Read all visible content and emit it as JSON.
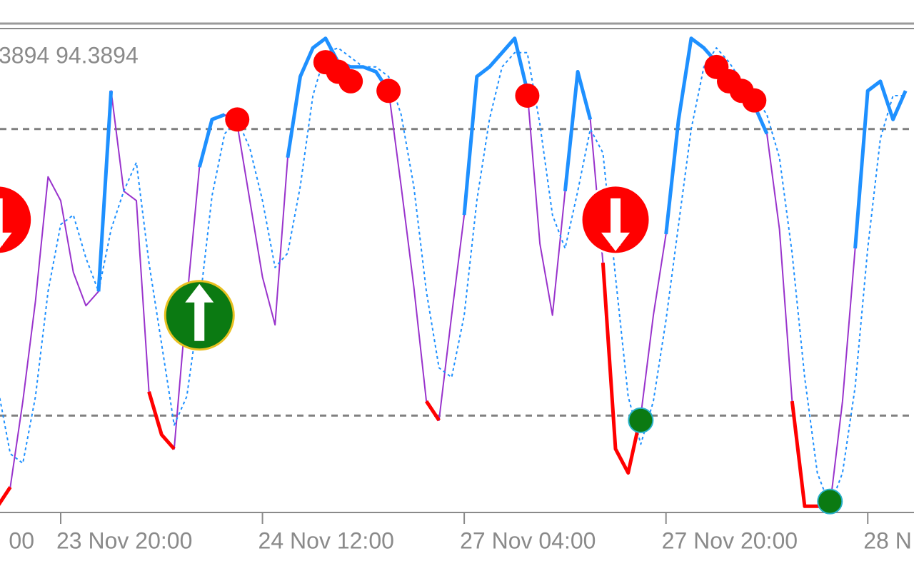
{
  "chart_data": {
    "type": "line",
    "header": "3894 94.3894",
    "left_label": "00",
    "categories": [
      null,
      null,
      null,
      null,
      null,
      "23 Nov 20:00",
      null,
      null,
      null,
      null,
      null,
      null,
      null,
      null,
      null,
      null,
      null,
      null,
      null,
      null,
      null,
      "24 Nov 12:00",
      null,
      null,
      null,
      null,
      null,
      null,
      null,
      null,
      null,
      null,
      null,
      null,
      null,
      null,
      null,
      "27 Nov 04:00",
      null,
      null,
      null,
      null,
      null,
      null,
      null,
      null,
      null,
      null,
      null,
      null,
      null,
      null,
      null,
      "27 Nov 20:00",
      null,
      null,
      null,
      null,
      null,
      null,
      null,
      null,
      null,
      null,
      null,
      null,
      null,
      null,
      null,
      "28 N",
      null,
      null,
      null
    ],
    "ylim": [
      0,
      100
    ],
    "levels": [
      20,
      80
    ],
    "level_color": "#808080",
    "series": [
      {
        "color": "#9933cc",
        "width": 2,
        "style": "solid",
        "values": [
          1,
          5,
          23,
          44,
          70,
          65,
          50,
          43,
          46,
          88,
          67,
          65,
          25,
          16,
          13,
          44,
          72,
          82,
          83,
          81,
          65,
          49,
          39,
          74,
          91,
          97,
          99,
          94,
          93,
          93,
          92,
          88,
          68,
          47,
          23,
          19,
          41,
          62,
          91,
          93,
          96,
          99,
          88,
          56,
          41,
          67,
          92,
          82,
          52,
          13,
          8,
          20,
          41,
          58,
          82,
          99,
          97,
          94,
          91,
          86,
          85,
          79,
          59,
          23,
          1,
          1,
          1,
          23,
          55,
          88,
          90,
          82,
          88
        ]
      },
      {
        "color": "#1e90ff",
        "width": 2,
        "style": "dashed",
        "values": [
          26,
          12,
          10,
          24,
          46,
          60,
          62,
          53,
          46,
          59,
          67,
          73,
          52,
          35,
          18,
          24,
          43,
          66,
          79,
          82,
          76,
          65,
          51,
          54,
          68,
          87,
          96,
          97,
          95,
          93,
          93,
          91,
          83,
          68,
          46,
          30,
          28,
          41,
          65,
          82,
          93,
          96,
          96,
          81,
          62,
          55,
          67,
          80,
          75,
          49,
          24,
          14,
          23,
          40,
          60,
          80,
          93,
          97,
          94,
          90,
          87,
          83,
          74,
          54,
          28,
          8,
          1,
          8,
          26,
          55,
          78,
          87,
          87
        ]
      },
      {
        "color": "#1e90ff",
        "width": 5,
        "style": "solid",
        "values": [
          null,
          null,
          null,
          null,
          null,
          null,
          null,
          null,
          46,
          88,
          null,
          null,
          null,
          null,
          null,
          null,
          72,
          82,
          83,
          null,
          null,
          null,
          null,
          74,
          91,
          97,
          99,
          94,
          93,
          93,
          92,
          88,
          null,
          null,
          null,
          null,
          null,
          62,
          91,
          93,
          96,
          99,
          88,
          null,
          null,
          67,
          92,
          82,
          null,
          null,
          null,
          null,
          null,
          58,
          82,
          99,
          97,
          94,
          91,
          86,
          85,
          79,
          null,
          null,
          null,
          null,
          null,
          null,
          55,
          88,
          90,
          82,
          88
        ]
      },
      {
        "color": "#ff0000",
        "width": 5,
        "style": "solid",
        "values": [
          1,
          5,
          null,
          null,
          null,
          null,
          null,
          null,
          null,
          null,
          null,
          null,
          25,
          16,
          13,
          null,
          null,
          null,
          null,
          null,
          null,
          null,
          null,
          null,
          null,
          null,
          null,
          null,
          null,
          null,
          null,
          null,
          null,
          null,
          23,
          19,
          null,
          null,
          null,
          null,
          null,
          null,
          null,
          null,
          null,
          null,
          null,
          null,
          52,
          13,
          8,
          20,
          null,
          null,
          null,
          null,
          null,
          null,
          null,
          null,
          null,
          null,
          null,
          23,
          1,
          1,
          1,
          null,
          null,
          null,
          null,
          null,
          null
        ]
      }
    ],
    "dots": [
      {
        "color": "#ff0000",
        "values": [
          null,
          null,
          null,
          null,
          null,
          null,
          null,
          null,
          null,
          null,
          null,
          null,
          null,
          null,
          null,
          null,
          null,
          null,
          null,
          82,
          null,
          null,
          null,
          null,
          null,
          null,
          94,
          92,
          90,
          null,
          null,
          88,
          null,
          null,
          null,
          null,
          null,
          null,
          null,
          null,
          null,
          null,
          87,
          null,
          null,
          null,
          null,
          null,
          null,
          null,
          null,
          null,
          null,
          null,
          null,
          null,
          null,
          93,
          90,
          88,
          86,
          null,
          null,
          null,
          null,
          null,
          null,
          null,
          null,
          null,
          null,
          null,
          null
        ]
      },
      {
        "color": "#0b7a12",
        "values": [
          null,
          null,
          null,
          null,
          null,
          null,
          null,
          null,
          null,
          null,
          null,
          null,
          null,
          null,
          null,
          null,
          null,
          null,
          null,
          null,
          null,
          null,
          null,
          null,
          null,
          null,
          null,
          null,
          null,
          null,
          null,
          null,
          null,
          null,
          null,
          null,
          null,
          null,
          null,
          null,
          null,
          null,
          null,
          null,
          null,
          null,
          null,
          null,
          null,
          null,
          null,
          19,
          null,
          null,
          null,
          null,
          null,
          null,
          null,
          null,
          null,
          null,
          null,
          null,
          null,
          null,
          2,
          null,
          null,
          null,
          null,
          null,
          null
        ]
      }
    ],
    "arrows": [
      {
        "color": "#0b7a12",
        "direction": "up",
        "values": [
          null,
          null,
          null,
          null,
          null,
          null,
          null,
          null,
          null,
          null,
          null,
          null,
          null,
          null,
          null,
          null,
          41,
          null,
          null,
          null,
          null,
          null,
          null,
          null,
          null,
          null,
          null,
          null,
          null,
          null,
          null,
          null,
          null,
          null,
          null,
          null,
          null,
          null,
          null,
          null,
          null,
          null,
          null,
          null,
          null,
          null,
          null,
          null,
          null,
          null,
          null,
          null,
          null,
          null,
          null,
          null,
          null,
          null,
          null,
          null,
          null,
          null,
          null,
          null,
          null,
          null,
          null,
          null,
          null,
          null,
          null,
          null,
          null
        ]
      },
      {
        "color": "#ff0000",
        "direction": "down",
        "values": [
          61,
          null,
          null,
          null,
          null,
          null,
          null,
          null,
          null,
          null,
          null,
          null,
          null,
          null,
          null,
          null,
          null,
          null,
          null,
          null,
          null,
          null,
          null,
          null,
          null,
          null,
          null,
          null,
          null,
          null,
          null,
          null,
          null,
          null,
          null,
          null,
          null,
          null,
          null,
          null,
          null,
          null,
          null,
          null,
          null,
          null,
          null,
          null,
          null,
          61,
          null,
          null,
          null,
          null,
          null,
          null,
          null,
          null,
          null,
          null,
          null,
          null,
          null,
          null,
          null,
          null,
          null,
          null,
          null,
          null,
          null,
          null,
          null
        ]
      }
    ]
  }
}
